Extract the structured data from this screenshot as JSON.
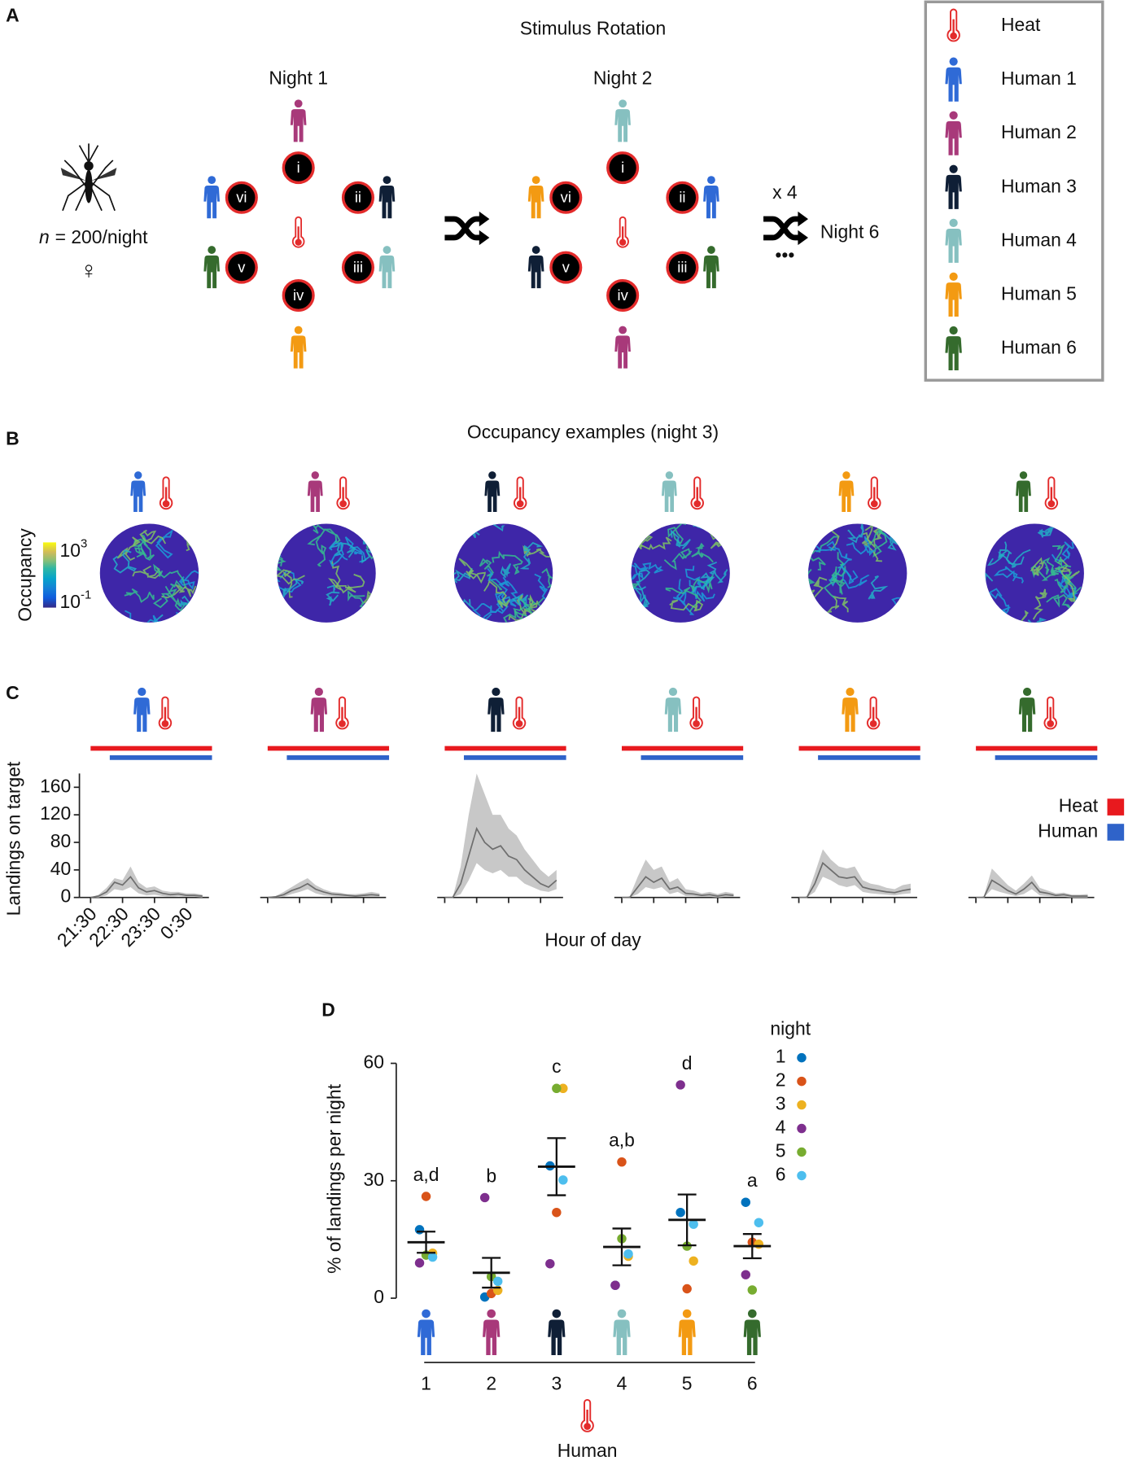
{
  "panel_a": {
    "label": "A",
    "title": "Stimulus Rotation",
    "population": {
      "symbol": "n",
      "text": "= 200/night",
      "sex": "♀"
    },
    "nights": [
      {
        "title": "Night 1",
        "ports": [
          {
            "label": "i",
            "color": "#a8397a"
          },
          {
            "label": "ii",
            "color": "#0f1f36"
          },
          {
            "label": "iii",
            "color": "#86c0c0"
          },
          {
            "label": "iv",
            "color": "#f39a12"
          },
          {
            "label": "v",
            "color": "#356b2d"
          },
          {
            "label": "vi",
            "color": "#2f6ad6"
          }
        ]
      },
      {
        "title": "Night 2",
        "ports": [
          {
            "label": "i",
            "color": "#86c0c0"
          },
          {
            "label": "ii",
            "color": "#2f6ad6"
          },
          {
            "label": "iii",
            "color": "#356b2d"
          },
          {
            "label": "iv",
            "color": "#a8397a"
          },
          {
            "label": "v",
            "color": "#0f1f36"
          },
          {
            "label": "vi",
            "color": "#f39a12"
          }
        ]
      }
    ],
    "repeat": {
      "text": "x 4",
      "target": "Night 6",
      "ellipsis": "•••"
    },
    "legend": [
      {
        "name": "Heat",
        "color": "#e32b2b"
      },
      {
        "name": "Human 1",
        "color": "#2f6ad6"
      },
      {
        "name": "Human 2",
        "color": "#a8397a"
      },
      {
        "name": "Human 3",
        "color": "#0f1f36"
      },
      {
        "name": "Human 4",
        "color": "#86c0c0"
      },
      {
        "name": "Human 5",
        "color": "#f39a12"
      },
      {
        "name": "Human 6",
        "color": "#356b2d"
      }
    ]
  },
  "panel_b": {
    "label": "B",
    "title": "Occupancy examples (night 3)",
    "colorbar": {
      "label": "Occupancy",
      "ticks": [
        {
          "base": "10",
          "exponent": "3"
        },
        {
          "base": "10",
          "exponent": "-1"
        }
      ]
    }
  },
  "chart_data": [
    {
      "type": "line",
      "label": "C",
      "ylabel": "Landings on target",
      "xlabel": "Hour of day",
      "ylim": [
        0,
        180
      ],
      "yticks": [
        0,
        40,
        80,
        120,
        160
      ],
      "xlim": [
        21.5,
        25.0
      ],
      "xticks": [
        {
          "value": 21.5,
          "label": "21:30"
        },
        {
          "value": 22.5,
          "label": "22:30"
        },
        {
          "value": 23.5,
          "label": "23:30"
        },
        {
          "value": 24.5,
          "label": "0:30"
        }
      ],
      "x": [
        21.5,
        21.75,
        22.0,
        22.25,
        22.5,
        22.75,
        23.0,
        23.25,
        23.5,
        23.75,
        24.0,
        24.25,
        24.5,
        24.75,
        25.0
      ],
      "stimuli": [
        {
          "name": "Heat",
          "color": "#e8191e",
          "start": 21.5,
          "end": 25.3
        },
        {
          "name": "Human",
          "color": "#2f63c9",
          "start": 22.1,
          "end": 25.3
        }
      ],
      "band_color": "#c8c8c8",
      "line_color": "#6e6e6e",
      "series": [
        {
          "values": [
            0,
            2,
            8,
            22,
            18,
            30,
            14,
            8,
            10,
            6,
            4,
            5,
            3,
            3,
            2
          ],
          "lower": [
            0,
            0,
            3,
            12,
            10,
            15,
            6,
            3,
            4,
            2,
            1,
            2,
            1,
            1,
            0
          ],
          "upper": [
            0,
            4,
            14,
            28,
            25,
            45,
            22,
            14,
            16,
            10,
            8,
            8,
            6,
            6,
            4
          ]
        },
        {
          "values": [
            0,
            1,
            4,
            10,
            14,
            20,
            12,
            8,
            5,
            4,
            3,
            2,
            3,
            4,
            3
          ],
          "lower": [
            0,
            0,
            1,
            5,
            8,
            12,
            6,
            3,
            2,
            1,
            1,
            1,
            1,
            1,
            1
          ],
          "upper": [
            0,
            2,
            8,
            15,
            22,
            28,
            18,
            12,
            8,
            7,
            5,
            5,
            6,
            8,
            6
          ]
        },
        {
          "values": [
            0,
            0,
            20,
            60,
            100,
            80,
            70,
            75,
            60,
            55,
            40,
            30,
            20,
            15,
            25
          ],
          "lower": [
            0,
            0,
            5,
            25,
            50,
            40,
            35,
            40,
            30,
            30,
            20,
            15,
            10,
            8,
            12
          ],
          "upper": [
            0,
            0,
            45,
            120,
            180,
            150,
            120,
            120,
            100,
            90,
            70,
            55,
            40,
            30,
            40
          ]
        },
        {
          "values": [
            0,
            0,
            15,
            30,
            22,
            28,
            12,
            15,
            6,
            5,
            3,
            4,
            2,
            4,
            3
          ],
          "lower": [
            0,
            0,
            5,
            15,
            12,
            15,
            5,
            8,
            2,
            2,
            1,
            1,
            0,
            1,
            1
          ],
          "upper": [
            0,
            2,
            30,
            55,
            40,
            45,
            22,
            28,
            12,
            10,
            6,
            8,
            5,
            8,
            6
          ]
        },
        {
          "values": [
            0,
            0,
            20,
            50,
            40,
            30,
            28,
            30,
            15,
            12,
            10,
            8,
            7,
            10,
            12
          ],
          "lower": [
            0,
            0,
            8,
            30,
            25,
            18,
            15,
            18,
            8,
            6,
            5,
            4,
            3,
            5,
            6
          ],
          "upper": [
            0,
            2,
            35,
            70,
            55,
            45,
            42,
            45,
            25,
            20,
            18,
            14,
            12,
            18,
            20
          ]
        },
        {
          "values": [
            0,
            0,
            25,
            18,
            10,
            5,
            12,
            22,
            8,
            6,
            3,
            4,
            2,
            2,
            2
          ],
          "lower": [
            0,
            0,
            12,
            8,
            5,
            2,
            5,
            12,
            3,
            2,
            1,
            1,
            0,
            0,
            0
          ],
          "upper": [
            0,
            2,
            42,
            30,
            18,
            10,
            20,
            32,
            14,
            10,
            6,
            7,
            4,
            4,
            5
          ]
        }
      ]
    },
    {
      "type": "scatter",
      "label": "D",
      "ylabel": "% of landings per night",
      "xlabel": "Human",
      "categories": [
        "1",
        "2",
        "3",
        "4",
        "5",
        "6"
      ],
      "ylim": [
        0,
        60
      ],
      "yticks": [
        0,
        30,
        60
      ],
      "legend_title": "night",
      "series": [
        {
          "name": "1",
          "color": "#0072bd",
          "values": [
            17.5,
            0.3,
            33.8,
            3.3,
            21.9,
            24.5
          ]
        },
        {
          "name": "2",
          "color": "#d95319",
          "values": [
            26,
            1.2,
            21.9,
            34.8,
            2.4,
            14.3
          ]
        },
        {
          "name": "3",
          "color": "#edb120",
          "values": [
            11.5,
            2,
            53.6,
            10.7,
            9.5,
            13.8
          ]
        },
        {
          "name": "4",
          "color": "#7e2f8e",
          "values": [
            9,
            25.7,
            8.8,
            3.3,
            54.5,
            6
          ]
        },
        {
          "name": "5",
          "color": "#77ac30",
          "values": [
            11,
            5.5,
            53.6,
            15.2,
            13.3,
            2.1
          ]
        },
        {
          "name": "6",
          "color": "#4dbeee",
          "values": [
            10.5,
            4.3,
            30.2,
            11.3,
            18.9,
            19.3
          ]
        }
      ],
      "mean": [
        14.3,
        6.5,
        33.6,
        13.1,
        20,
        13.3
      ],
      "sem": [
        2.7,
        3.8,
        7.3,
        4.7,
        6.5,
        3.1
      ],
      "letters": [
        "a,d",
        "b",
        "c",
        "a,b",
        "d",
        "a"
      ]
    }
  ]
}
